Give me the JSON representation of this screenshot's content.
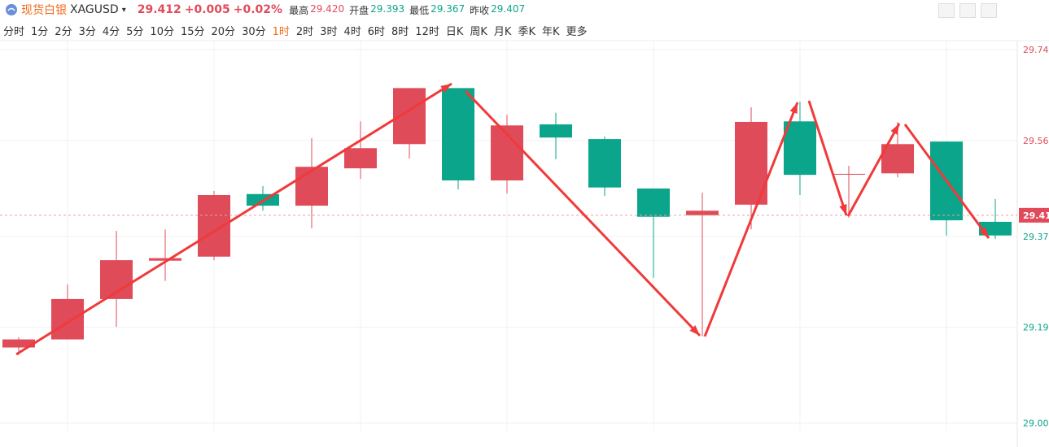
{
  "header": {
    "name": "现货白银",
    "symbol": "XAGUSD",
    "price": 29.412,
    "change": "+0.005",
    "change_pct": "+0.02%",
    "stats": [
      {
        "label": "最高",
        "value": "29.420"
      },
      {
        "label": "开盘",
        "value": "29.393"
      },
      {
        "label": "最低",
        "value": "29.367"
      },
      {
        "label": "昨收",
        "value": "29.407"
      }
    ]
  },
  "periods": [
    "分时",
    "1分",
    "2分",
    "3分",
    "4分",
    "5分",
    "10分",
    "15分",
    "20分",
    "30分",
    "1时",
    "2时",
    "3时",
    "4时",
    "6时",
    "8时",
    "12时",
    "日K",
    "周K",
    "月K",
    "季K",
    "年K",
    "更多"
  ],
  "active_period": "1时",
  "chart_data": {
    "type": "candlestick",
    "up_color": "#e04b5a",
    "down_color": "#0aa58a",
    "open": [
      29.15,
      29.166,
      29.246,
      29.322,
      29.33,
      29.454,
      29.431,
      29.505,
      29.553,
      29.664,
      29.481,
      29.592,
      29.563,
      29.465,
      29.412,
      29.433,
      29.598,
      29.493,
      29.495,
      29.558,
      29.399
    ],
    "high": [
      29.17,
      29.275,
      29.381,
      29.384,
      29.46,
      29.47,
      29.565,
      29.598,
      29.664,
      29.664,
      29.611,
      29.615,
      29.568,
      29.465,
      29.457,
      29.626,
      29.637,
      29.51,
      29.597,
      29.558,
      29.444
    ],
    "low": [
      29.135,
      29.166,
      29.191,
      29.282,
      29.323,
      29.421,
      29.386,
      29.484,
      29.524,
      29.463,
      29.455,
      29.523,
      29.45,
      29.288,
      29.172,
      29.384,
      29.452,
      29.407,
      29.487,
      29.372,
      29.365
    ],
    "close": [
      29.166,
      29.246,
      29.323,
      29.327,
      29.452,
      29.431,
      29.508,
      29.545,
      29.664,
      29.481,
      29.59,
      29.566,
      29.467,
      29.409,
      29.421,
      29.597,
      29.492,
      29.494,
      29.553,
      29.402,
      29.372
    ],
    "ylim": [
      28.985,
      29.758
    ],
    "yticks": [
      {
        "value": 29.74,
        "label": "29.740"
      },
      {
        "value": 29.56,
        "label": "29.560"
      },
      {
        "value": 29.37,
        "label": "29.370"
      },
      {
        "value": 29.19,
        "label": "29.190"
      },
      {
        "value": 29.0,
        "label": "29.000"
      }
    ],
    "grid": true
  }
}
